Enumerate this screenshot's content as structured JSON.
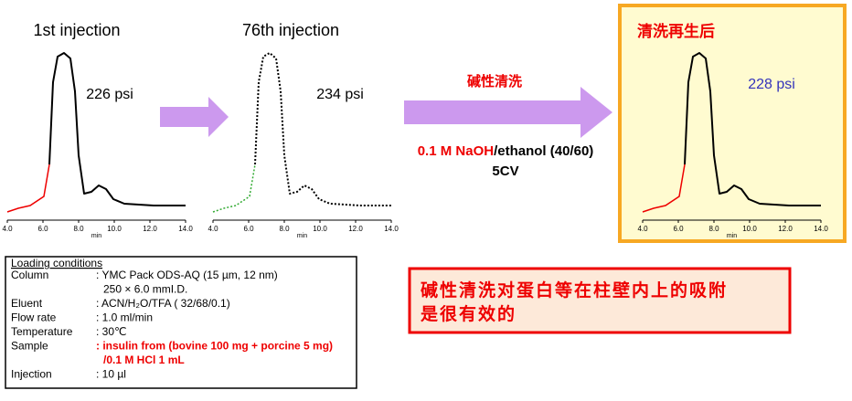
{
  "panels": [
    {
      "title": "1st injection",
      "pressure": "226 psi",
      "axis_ticks": [
        "4.0",
        "6.0",
        "8.0",
        "10.0",
        "12.0",
        "14.0"
      ],
      "axis_unit": "min"
    },
    {
      "title": "76th injection",
      "pressure": "234 psi",
      "axis_ticks": [
        "4.0",
        "6.0",
        "8.0",
        "10.0",
        "12.0",
        "14.0"
      ],
      "axis_unit": "min"
    },
    {
      "title": "清洗再生后",
      "pressure": "228 psi",
      "axis_ticks": [
        "4.0",
        "6.0",
        "8.0",
        "10.0",
        "12.0",
        "14.0"
      ],
      "axis_unit": "min"
    }
  ],
  "wash_step": {
    "label": "碱性清洗",
    "reagent": "0.1 M NaOH",
    "solvent": "/ethanol (40/60)",
    "volume": "5CV"
  },
  "conditions": {
    "title": "Loading conditions",
    "rows": [
      {
        "label": "Column",
        "value": ": YMC Pack ODS-AQ (15 µm, 12 nm)"
      },
      {
        "value": "250 × 6.0 mmI.D."
      },
      {
        "label": "Eluent",
        "value": ": ACN/H₂O/TFA ( 32/68/0.1)"
      },
      {
        "label": "Flow rate",
        "value": ": 1.0 ml/min"
      },
      {
        "label": "Temperature",
        "value": ": 30℃"
      },
      {
        "label": "Sample",
        "value": ": insulin from (bovine 100 mg + porcine 5 mg)"
      },
      {
        "value": "/0.1 M HCl 1 mL"
      },
      {
        "label": "Injection",
        "value": ": 10 µl"
      }
    ]
  },
  "callout": [
    "碱性清洗对蛋白等在柱壁内上的吸附",
    "是很有效的"
  ]
}
